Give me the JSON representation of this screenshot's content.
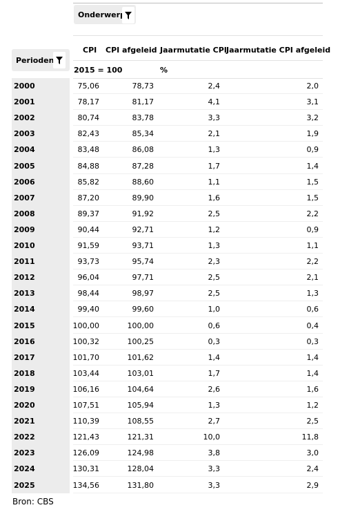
{
  "filter_subject_label": "Onderwerp",
  "filter_period_label": "Perioden",
  "columns": [
    "CPI",
    "CPI afgeleid",
    "Jaarmutatie CPI",
    "Jaarmutatie CPI afgeleid"
  ],
  "units": {
    "index": "2015 = 100",
    "percent": "%"
  },
  "rows": [
    {
      "year": "2000",
      "cpi": "75,06",
      "cpi_afgeleid": "78,73",
      "jm_cpi": "2,4",
      "jm_cpi_afgeleid": "2,0"
    },
    {
      "year": "2001",
      "cpi": "78,17",
      "cpi_afgeleid": "81,17",
      "jm_cpi": "4,1",
      "jm_cpi_afgeleid": "3,1"
    },
    {
      "year": "2002",
      "cpi": "80,74",
      "cpi_afgeleid": "83,78",
      "jm_cpi": "3,3",
      "jm_cpi_afgeleid": "3,2"
    },
    {
      "year": "2003",
      "cpi": "82,43",
      "cpi_afgeleid": "85,34",
      "jm_cpi": "2,1",
      "jm_cpi_afgeleid": "1,9"
    },
    {
      "year": "2004",
      "cpi": "83,48",
      "cpi_afgeleid": "86,08",
      "jm_cpi": "1,3",
      "jm_cpi_afgeleid": "0,9"
    },
    {
      "year": "2005",
      "cpi": "84,88",
      "cpi_afgeleid": "87,28",
      "jm_cpi": "1,7",
      "jm_cpi_afgeleid": "1,4"
    },
    {
      "year": "2006",
      "cpi": "85,82",
      "cpi_afgeleid": "88,60",
      "jm_cpi": "1,1",
      "jm_cpi_afgeleid": "1,5"
    },
    {
      "year": "2007",
      "cpi": "87,20",
      "cpi_afgeleid": "89,90",
      "jm_cpi": "1,6",
      "jm_cpi_afgeleid": "1,5"
    },
    {
      "year": "2008",
      "cpi": "89,37",
      "cpi_afgeleid": "91,92",
      "jm_cpi": "2,5",
      "jm_cpi_afgeleid": "2,2"
    },
    {
      "year": "2009",
      "cpi": "90,44",
      "cpi_afgeleid": "92,71",
      "jm_cpi": "1,2",
      "jm_cpi_afgeleid": "0,9"
    },
    {
      "year": "2010",
      "cpi": "91,59",
      "cpi_afgeleid": "93,71",
      "jm_cpi": "1,3",
      "jm_cpi_afgeleid": "1,1"
    },
    {
      "year": "2011",
      "cpi": "93,73",
      "cpi_afgeleid": "95,74",
      "jm_cpi": "2,3",
      "jm_cpi_afgeleid": "2,2"
    },
    {
      "year": "2012",
      "cpi": "96,04",
      "cpi_afgeleid": "97,71",
      "jm_cpi": "2,5",
      "jm_cpi_afgeleid": "2,1"
    },
    {
      "year": "2013",
      "cpi": "98,44",
      "cpi_afgeleid": "98,97",
      "jm_cpi": "2,5",
      "jm_cpi_afgeleid": "1,3"
    },
    {
      "year": "2014",
      "cpi": "99,40",
      "cpi_afgeleid": "99,60",
      "jm_cpi": "1,0",
      "jm_cpi_afgeleid": "0,6"
    },
    {
      "year": "2015",
      "cpi": "100,00",
      "cpi_afgeleid": "100,00",
      "jm_cpi": "0,6",
      "jm_cpi_afgeleid": "0,4"
    },
    {
      "year": "2016",
      "cpi": "100,32",
      "cpi_afgeleid": "100,25",
      "jm_cpi": "0,3",
      "jm_cpi_afgeleid": "0,3"
    },
    {
      "year": "2017",
      "cpi": "101,70",
      "cpi_afgeleid": "101,62",
      "jm_cpi": "1,4",
      "jm_cpi_afgeleid": "1,4"
    },
    {
      "year": "2018",
      "cpi": "103,44",
      "cpi_afgeleid": "103,01",
      "jm_cpi": "1,7",
      "jm_cpi_afgeleid": "1,4"
    },
    {
      "year": "2019",
      "cpi": "106,16",
      "cpi_afgeleid": "104,64",
      "jm_cpi": "2,6",
      "jm_cpi_afgeleid": "1,6"
    },
    {
      "year": "2020",
      "cpi": "107,51",
      "cpi_afgeleid": "105,94",
      "jm_cpi": "1,3",
      "jm_cpi_afgeleid": "1,2"
    },
    {
      "year": "2021",
      "cpi": "110,39",
      "cpi_afgeleid": "108,55",
      "jm_cpi": "2,7",
      "jm_cpi_afgeleid": "2,5"
    },
    {
      "year": "2022",
      "cpi": "121,43",
      "cpi_afgeleid": "121,31",
      "jm_cpi": "10,0",
      "jm_cpi_afgeleid": "11,8"
    },
    {
      "year": "2023",
      "cpi": "126,09",
      "cpi_afgeleid": "124,98",
      "jm_cpi": "3,8",
      "jm_cpi_afgeleid": "3,0"
    },
    {
      "year": "2024",
      "cpi": "130,31",
      "cpi_afgeleid": "128,04",
      "jm_cpi": "3,3",
      "jm_cpi_afgeleid": "2,4"
    },
    {
      "year": "2025",
      "cpi": "134,56",
      "cpi_afgeleid": "131,80",
      "jm_cpi": "3,3",
      "jm_cpi_afgeleid": "2,9"
    }
  ],
  "source": "Bron: CBS"
}
